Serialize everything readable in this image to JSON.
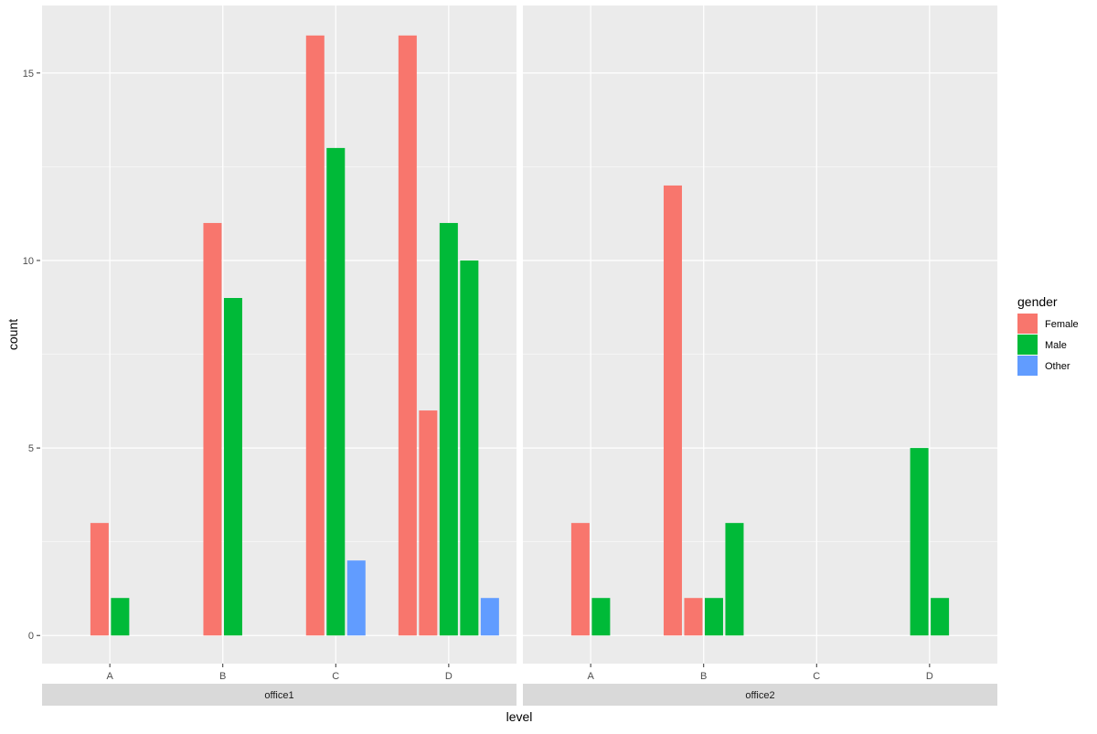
{
  "chart_data": {
    "type": "bar",
    "xlabel": "level",
    "ylabel": "count",
    "ylim": [
      -0.75,
      16.8
    ],
    "y_ticks": [
      0,
      5,
      10,
      15
    ],
    "categories": [
      "A",
      "B",
      "C",
      "D"
    ],
    "facets": [
      "office1",
      "office2"
    ],
    "legend": {
      "title": "gender",
      "position": "right",
      "items": [
        {
          "name": "Female",
          "color": "#F8766D"
        },
        {
          "name": "Male",
          "color": "#00BA38"
        },
        {
          "name": "Other",
          "color": "#619CFF"
        }
      ]
    },
    "panels": [
      {
        "facet": "office1",
        "groups": [
          {
            "category": "A",
            "bars": [
              {
                "gender": "Female",
                "value": 3
              },
              {
                "gender": "Male",
                "value": 1
              }
            ]
          },
          {
            "category": "B",
            "bars": [
              {
                "gender": "Female",
                "value": 11
              },
              {
                "gender": "Male",
                "value": 9
              }
            ]
          },
          {
            "category": "C",
            "bars": [
              {
                "gender": "Female",
                "value": 16
              },
              {
                "gender": "Male",
                "value": 13
              },
              {
                "gender": "Other",
                "value": 2
              }
            ]
          },
          {
            "category": "D",
            "bars": [
              {
                "gender": "Female",
                "value": 16
              },
              {
                "gender": "Female",
                "value": 6
              },
              {
                "gender": "Male",
                "value": 11
              },
              {
                "gender": "Male",
                "value": 10
              },
              {
                "gender": "Other",
                "value": 1
              }
            ]
          }
        ]
      },
      {
        "facet": "office2",
        "groups": [
          {
            "category": "A",
            "bars": [
              {
                "gender": "Female",
                "value": 3
              },
              {
                "gender": "Male",
                "value": 1
              }
            ]
          },
          {
            "category": "B",
            "bars": [
              {
                "gender": "Female",
                "value": 12
              },
              {
                "gender": "Female",
                "value": 1
              },
              {
                "gender": "Male",
                "value": 1
              },
              {
                "gender": "Male",
                "value": 3
              }
            ]
          },
          {
            "category": "C",
            "bars": []
          },
          {
            "category": "D",
            "bars": [
              {
                "gender": "Male",
                "value": 5
              },
              {
                "gender": "Male",
                "value": 1
              }
            ]
          }
        ]
      }
    ],
    "grid": true,
    "panel_background": "#EBEBEB",
    "strip_background": "#D9D9D9"
  }
}
